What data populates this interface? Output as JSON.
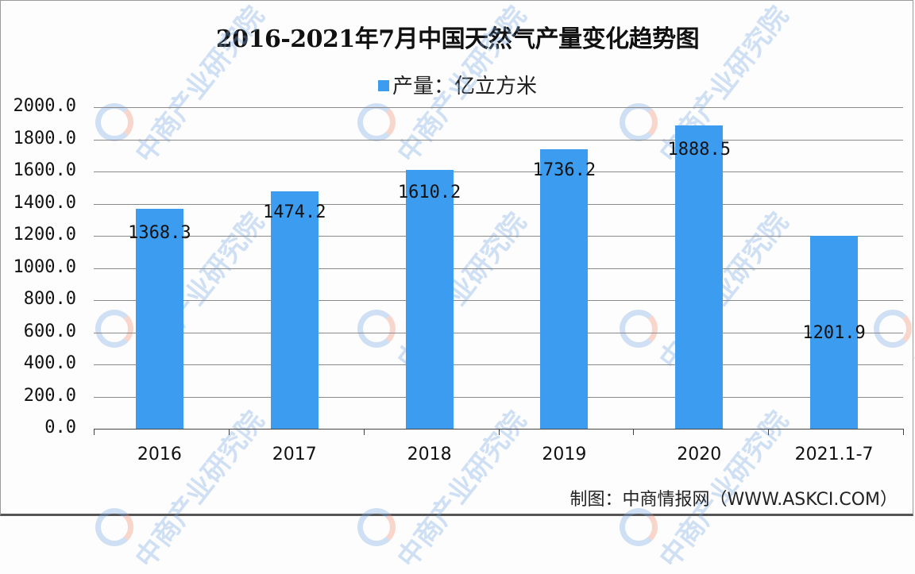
{
  "chart_data": {
    "type": "bar",
    "title": "2016-2021年7月中国天然气产量变化趋势图",
    "legend": [
      {
        "label": "产量：亿立方米",
        "color": "#3b9cf0"
      }
    ],
    "categories": [
      "2016",
      "2017",
      "2018",
      "2019",
      "2020",
      "2021.1-7"
    ],
    "series": [
      {
        "name": "产量：亿立方米",
        "values": [
          1368.3,
          1474.2,
          1610.2,
          1736.2,
          1888.5,
          1201.9
        ]
      }
    ],
    "value_labels": [
      "1368.3",
      "1474.2",
      "1610.2",
      "1736.2",
      "1888.5",
      "1201.9"
    ],
    "xlabel": "",
    "ylabel": "",
    "ylim": [
      0,
      2000
    ],
    "yticks": [
      "2000.0",
      "1800.0",
      "1600.0",
      "1400.0",
      "1200.0",
      "1000.0",
      "800.0",
      "600.0",
      "400.0",
      "200.0",
      "0.0"
    ],
    "grid": true,
    "legend_position": "top",
    "bar_color": "#3b9cf0"
  },
  "footer": {
    "source": "制图：中商情报网（WWW.ASKCI.COM）"
  },
  "watermark": {
    "text": "中商产业研究院"
  }
}
